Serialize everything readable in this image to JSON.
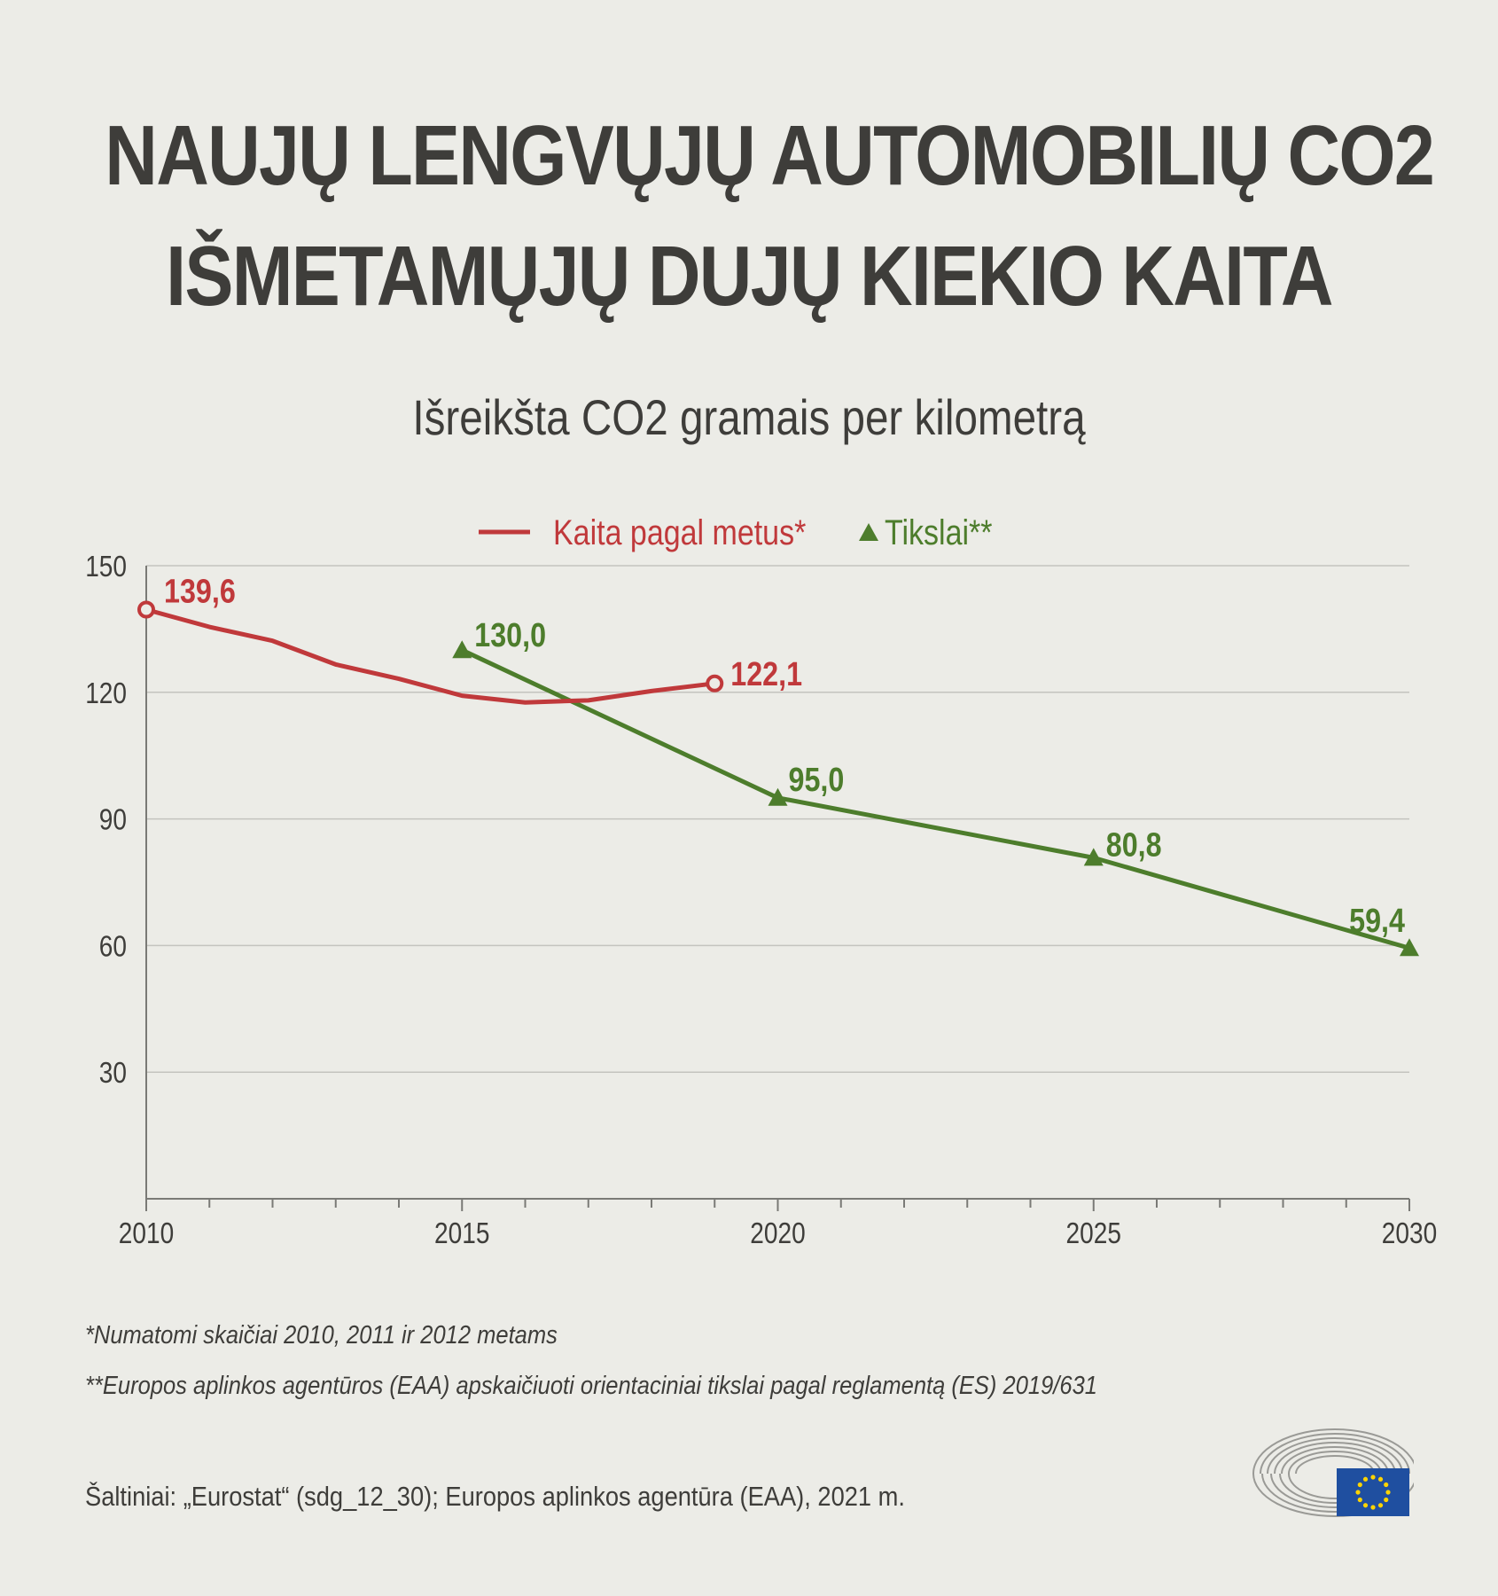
{
  "title": {
    "line1": "NAUJŲ LENGVŲJŲ AUTOMOBILIŲ CO2",
    "line2": "IŠMETAMŲJŲ DUJŲ KIEKIO KAITA"
  },
  "chart_data": {
    "type": "line",
    "title": "NAUJŲ LENGVŲJŲ AUTOMOBILIŲ CO2 IŠMETAMŲJŲ DUJŲ KIEKIO KAITA",
    "subtitle": "Išreikšta CO2 gramais per kilometrą",
    "xlim": [
      2010,
      2030
    ],
    "ylim": [
      0,
      150
    ],
    "x_ticks": [
      2010,
      2015,
      2020,
      2025,
      2030
    ],
    "y_ticks": [
      30,
      60,
      90,
      120,
      150
    ],
    "grid": true,
    "legend_position": "top-center",
    "series": [
      {
        "name": "Kaita pagal metus*",
        "color": "#c0393b",
        "marker": "open-circle-endpoints",
        "x": [
          2010,
          2011,
          2012,
          2013,
          2014,
          2015,
          2016,
          2017,
          2018,
          2019
        ],
        "y": [
          139.6,
          135.5,
          132.2,
          126.6,
          123.2,
          119.2,
          117.6,
          118.1,
          120.3,
          122.1
        ],
        "labels": [
          {
            "x": 2010,
            "text": "139,6"
          },
          {
            "x": 2019,
            "text": "122,1"
          }
        ]
      },
      {
        "name": "Tikslai**",
        "color": "#4d7d2c",
        "marker": "triangle",
        "x": [
          2015,
          2020,
          2025,
          2030
        ],
        "y": [
          130.0,
          95.0,
          80.8,
          59.4
        ],
        "labels": [
          {
            "x": 2015,
            "text": "130,0"
          },
          {
            "x": 2020,
            "text": "95,0"
          },
          {
            "x": 2025,
            "text": "80,8"
          },
          {
            "x": 2030,
            "text": "59,4"
          }
        ]
      }
    ]
  },
  "footnotes": [
    "*Numatomi skaičiai 2010, 2011 ir 2012 metams",
    "**Europos aplinkos agentūros (EAA) apskaičiuoti orientaciniai tikslai pagal reglamentą (ES) 2019/631"
  ],
  "source": "Šaltiniai: „Eurostat“ (sdg_12_30); Europos aplinkos agentūra (EAA), 2021 m.",
  "logo": {
    "icon": "european-parliament-logo",
    "flag_color": "#1f4fa0",
    "star_color": "#ffd400"
  }
}
